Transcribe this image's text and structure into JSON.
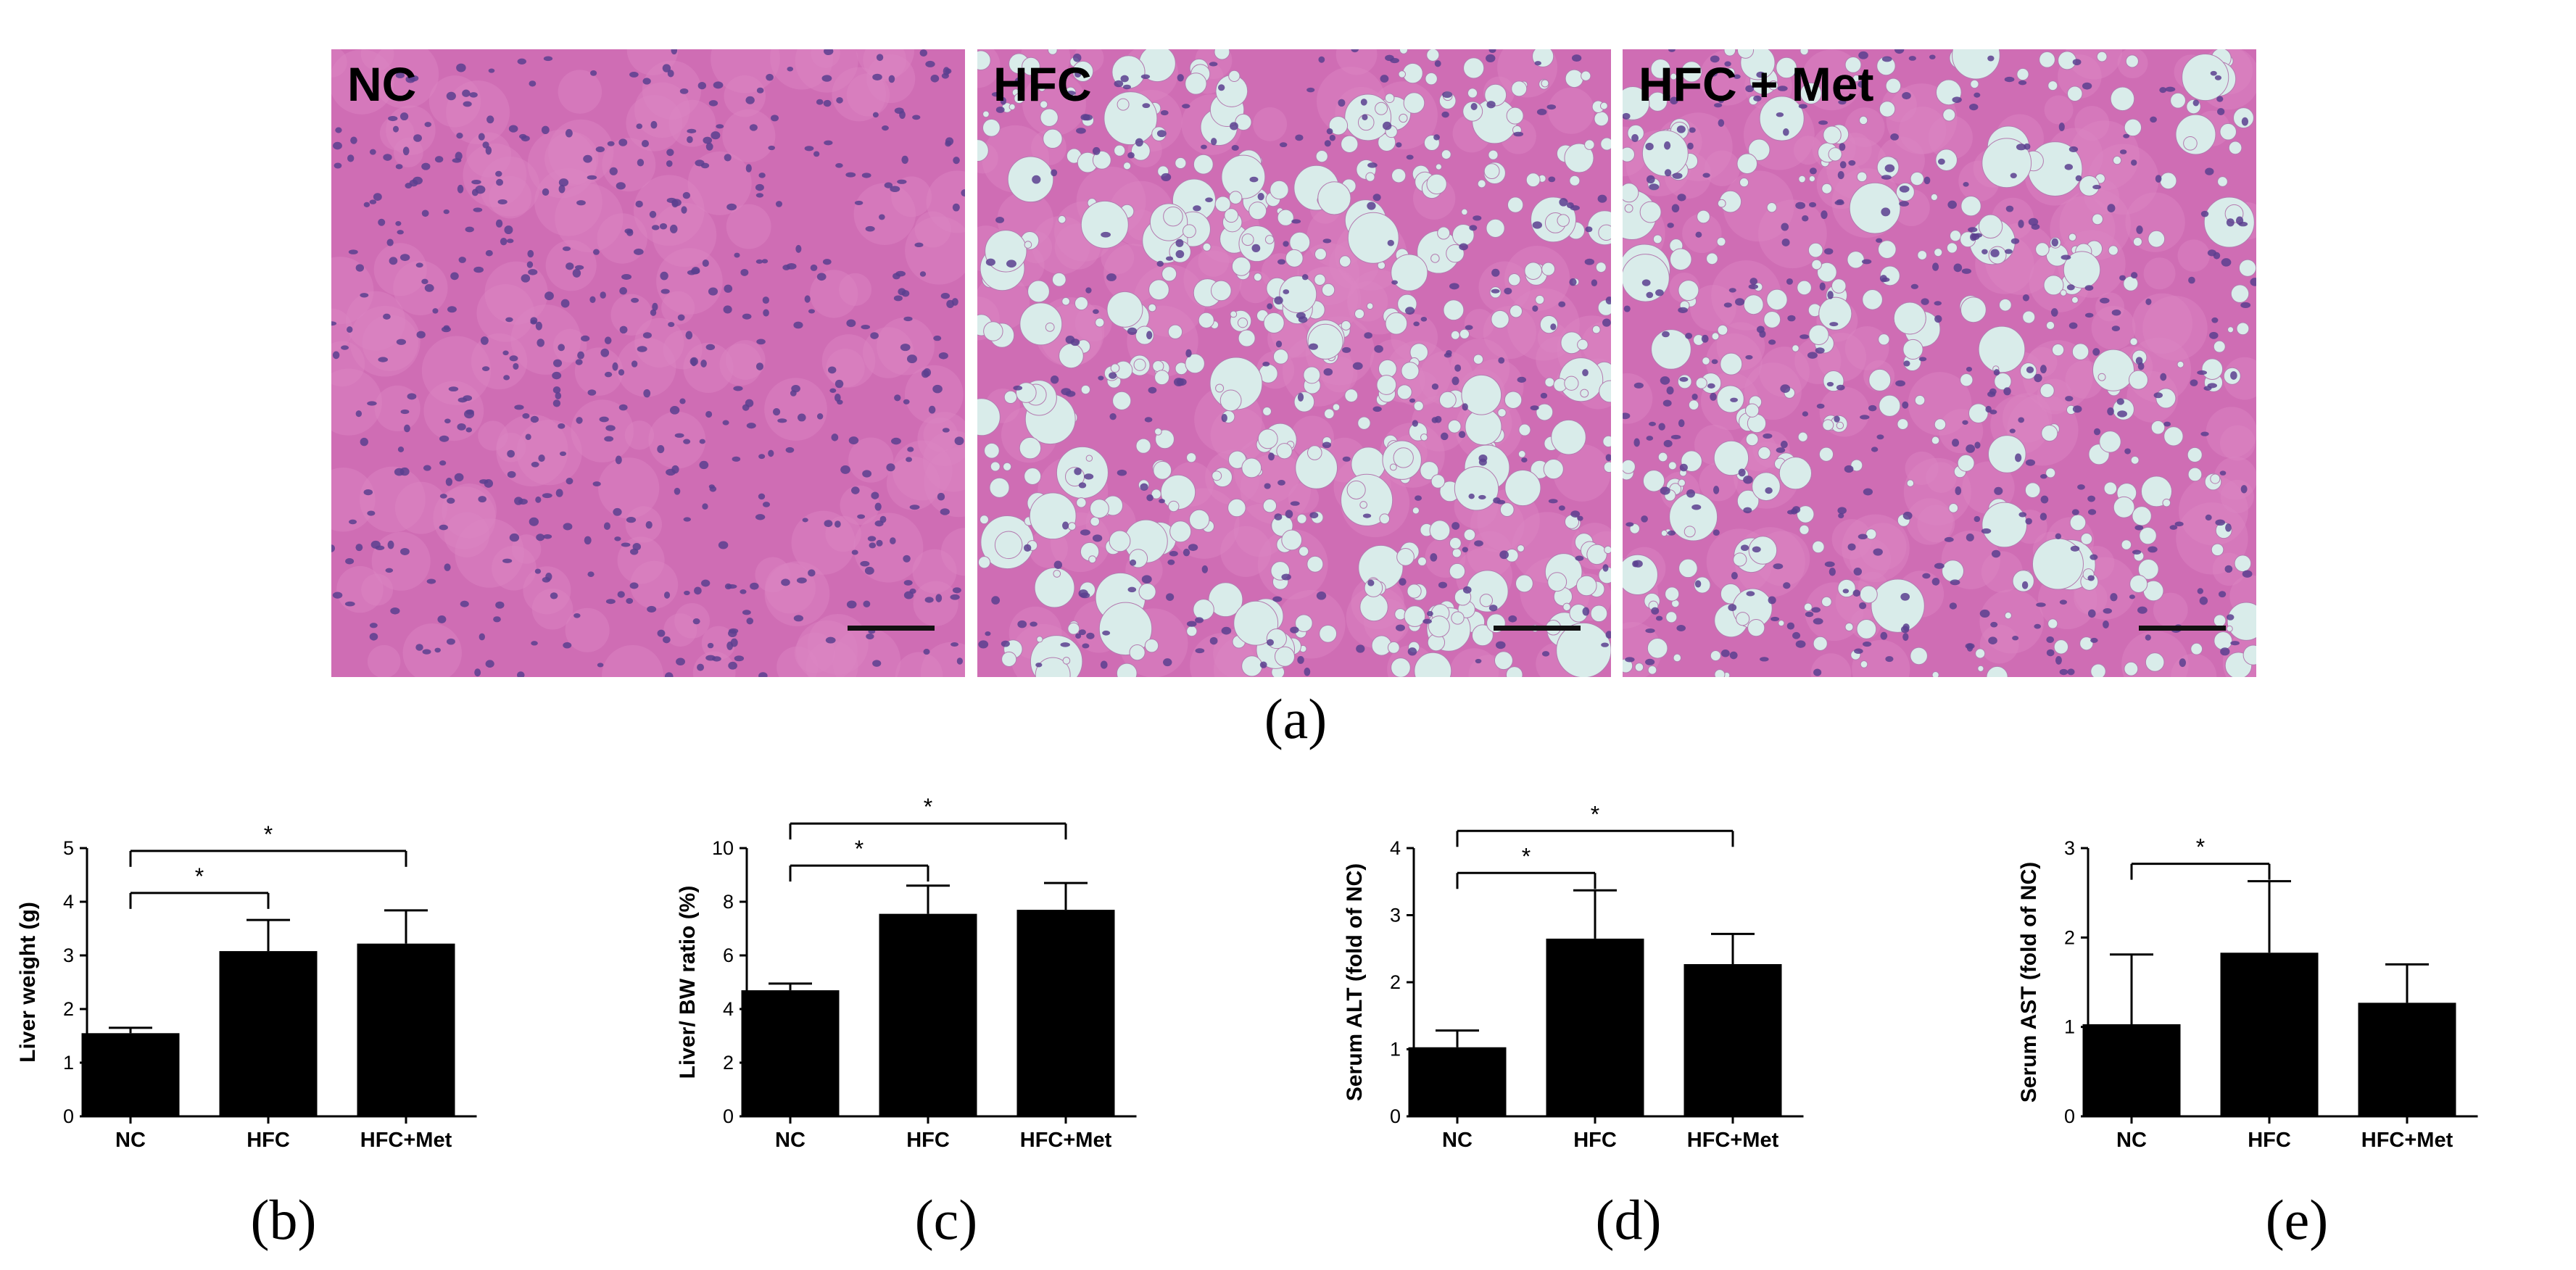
{
  "micrographs": [
    {
      "label": "NC"
    },
    {
      "label": "HFC"
    },
    {
      "label": "HFC + Met"
    }
  ],
  "captions": {
    "a": "(a)",
    "b": "(b)",
    "c": "(c)",
    "d": "(d)",
    "e": "(e)"
  },
  "colors": {
    "bar": "#000000",
    "tissue_bg": "#cf6db4",
    "vacuole": "#d9ecea",
    "nucleus": "#5a3f8f"
  },
  "chart_data": [
    {
      "type": "bar",
      "categories": [
        "NC",
        "HFC",
        "HFC+Met"
      ],
      "values": [
        1.55,
        3.08,
        3.22
      ],
      "errors": [
        0.1,
        0.58,
        0.62
      ],
      "ylabel": "Liver weight (g)",
      "ylim": [
        0,
        5
      ],
      "yticks": [
        "0",
        "1",
        "2",
        "3",
        "4",
        "5"
      ],
      "significance": [
        {
          "from": 0,
          "to": 1,
          "label": "*"
        },
        {
          "from": 0,
          "to": 2,
          "label": "*"
        }
      ]
    },
    {
      "type": "bar",
      "categories": [
        "NC",
        "HFC",
        "HFC+Met"
      ],
      "values": [
        4.7,
        7.55,
        7.7
      ],
      "errors": [
        0.25,
        1.05,
        1.0
      ],
      "ylabel": "Liver/ BW ratio (%)",
      "ylim": [
        0,
        10
      ],
      "yticks": [
        "0",
        "2",
        "4",
        "6",
        "8",
        "10"
      ],
      "significance": [
        {
          "from": 0,
          "to": 1,
          "label": "*"
        },
        {
          "from": 0,
          "to": 2,
          "label": "*"
        }
      ]
    },
    {
      "type": "bar",
      "categories": [
        "NC",
        "HFC",
        "HFC+Met"
      ],
      "values": [
        1.03,
        2.65,
        2.27
      ],
      "errors": [
        0.25,
        0.72,
        0.45
      ],
      "ylabel": "Serum ALT (fold of NC)",
      "ylim": [
        0,
        4
      ],
      "yticks": [
        "0",
        "1",
        "2",
        "3",
        "4"
      ],
      "significance": [
        {
          "from": 0,
          "to": 1,
          "label": "*"
        },
        {
          "from": 0,
          "to": 2,
          "label": "*"
        }
      ]
    },
    {
      "type": "bar",
      "categories": [
        "NC",
        "HFC",
        "HFC+Met"
      ],
      "values": [
        1.03,
        1.83,
        1.27
      ],
      "errors": [
        0.78,
        0.8,
        0.43
      ],
      "ylabel": "Serum AST (fold of NC)",
      "ylim": [
        0,
        3
      ],
      "yticks": [
        "0",
        "1",
        "2",
        "3"
      ],
      "significance": [
        {
          "from": 0,
          "to": 1,
          "label": "*"
        }
      ]
    }
  ]
}
